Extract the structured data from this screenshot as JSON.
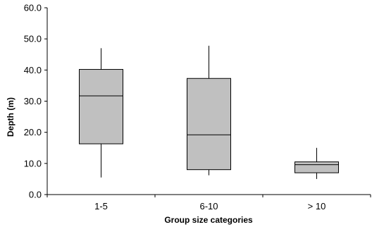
{
  "chart_data": {
    "type": "box",
    "title": "",
    "xlabel": "Group size categories",
    "ylabel": "Depth (m)",
    "ylim": [
      0,
      60
    ],
    "yticks": [
      "0.0",
      "10.0",
      "20.0",
      "30.0",
      "40.0",
      "50.0",
      "60.0"
    ],
    "grid": false,
    "box_color": "#c0c0c0",
    "categories": [
      "1-5",
      "6-10",
      "> 10"
    ],
    "boxes": [
      {
        "category": "1-5",
        "min": 5.5,
        "q1": 16.3,
        "median": 31.7,
        "q3": 40.2,
        "max": 47.0
      },
      {
        "category": "6-10",
        "min": 6.2,
        "q1": 8.0,
        "median": 19.2,
        "q3": 37.3,
        "max": 47.8
      },
      {
        "category": "> 10",
        "min": 5.0,
        "q1": 7.0,
        "median": 9.6,
        "q3": 10.5,
        "max": 15.0
      }
    ]
  }
}
